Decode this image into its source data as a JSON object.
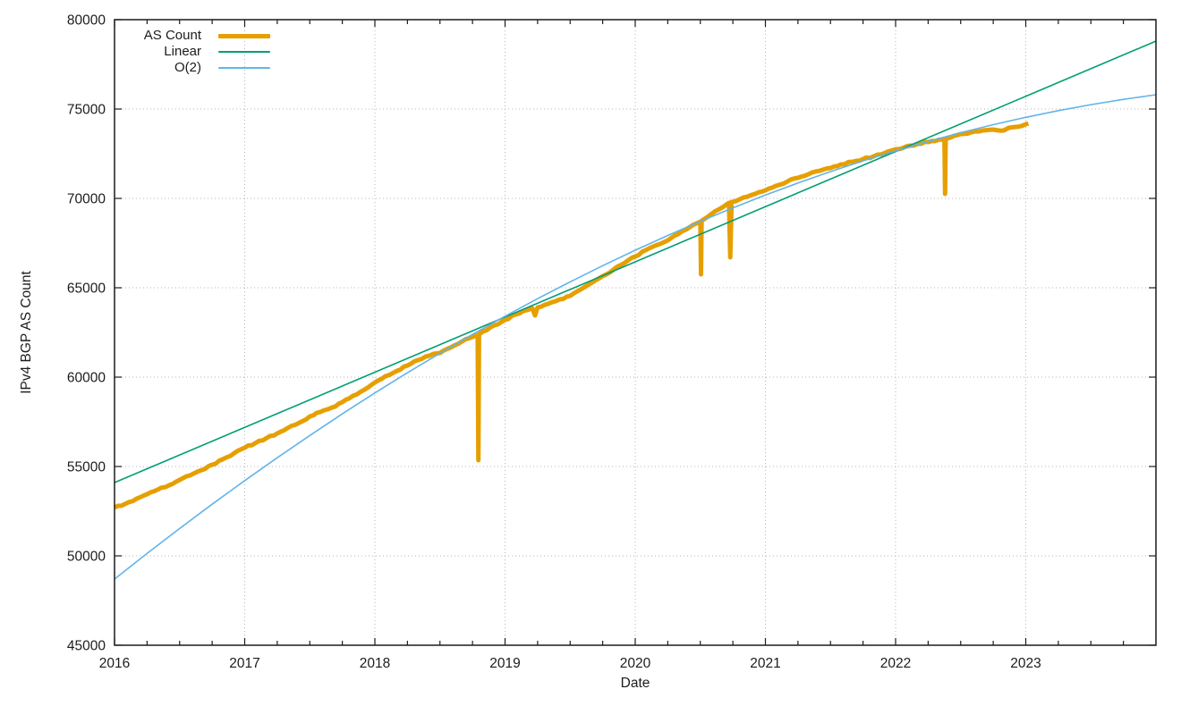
{
  "chart_data": {
    "type": "line",
    "title": "",
    "xlabel": "Date",
    "ylabel": "IPv4 BGP AS Count",
    "xlim": [
      2016,
      2024
    ],
    "ylim": [
      45000,
      80000
    ],
    "x_major_ticks": [
      2016,
      2017,
      2018,
      2019,
      2020,
      2021,
      2022,
      2023
    ],
    "x_minor_step": 0.25,
    "y_major_ticks": [
      45000,
      50000,
      55000,
      60000,
      65000,
      70000,
      75000,
      80000
    ],
    "grid": "dotted-on-majors",
    "legend_position": "top-left-inside",
    "legend_entries": [
      "AS Count",
      "Linear",
      "O(2)"
    ],
    "series": [
      {
        "name": "AS Count",
        "color": "#e69f00",
        "stroke_width": 5,
        "noisy": true,
        "points": [
          [
            2016.0,
            52700
          ],
          [
            2016.08,
            52900
          ],
          [
            2016.17,
            53200
          ],
          [
            2016.25,
            53450
          ],
          [
            2016.33,
            53700
          ],
          [
            2016.42,
            53950
          ],
          [
            2016.5,
            54250
          ],
          [
            2016.58,
            54500
          ],
          [
            2016.67,
            54800
          ],
          [
            2016.75,
            55100
          ],
          [
            2016.83,
            55400
          ],
          [
            2016.92,
            55750
          ],
          [
            2017.0,
            56050
          ],
          [
            2017.08,
            56300
          ],
          [
            2017.17,
            56600
          ],
          [
            2017.25,
            56850
          ],
          [
            2017.33,
            57150
          ],
          [
            2017.42,
            57450
          ],
          [
            2017.5,
            57800
          ],
          [
            2017.58,
            58050
          ],
          [
            2017.67,
            58300
          ],
          [
            2017.75,
            58600
          ],
          [
            2017.83,
            58950
          ],
          [
            2017.92,
            59300
          ],
          [
            2018.0,
            59700
          ],
          [
            2018.08,
            60050
          ],
          [
            2018.17,
            60350
          ],
          [
            2018.25,
            60650
          ],
          [
            2018.33,
            60950
          ],
          [
            2018.42,
            61200
          ],
          [
            2018.5,
            61350
          ],
          [
            2018.58,
            61650
          ],
          [
            2018.67,
            62000
          ],
          [
            2018.75,
            62250
          ],
          [
            2018.79,
            62350
          ],
          [
            2018.795,
            55350
          ],
          [
            2018.8,
            62400
          ],
          [
            2018.83,
            62550
          ],
          [
            2018.92,
            62900
          ],
          [
            2019.0,
            63200
          ],
          [
            2019.08,
            63500
          ],
          [
            2019.17,
            63750
          ],
          [
            2019.21,
            63850
          ],
          [
            2019.23,
            63450
          ],
          [
            2019.25,
            63900
          ],
          [
            2019.33,
            64100
          ],
          [
            2019.42,
            64350
          ],
          [
            2019.5,
            64550
          ],
          [
            2019.58,
            64900
          ],
          [
            2019.67,
            65300
          ],
          [
            2019.75,
            65650
          ],
          [
            2019.83,
            66000
          ],
          [
            2019.92,
            66400
          ],
          [
            2020.0,
            66750
          ],
          [
            2020.08,
            67100
          ],
          [
            2020.17,
            67400
          ],
          [
            2020.25,
            67650
          ],
          [
            2020.33,
            68000
          ],
          [
            2020.42,
            68400
          ],
          [
            2020.5,
            68700
          ],
          [
            2020.505,
            65750
          ],
          [
            2020.51,
            68750
          ],
          [
            2020.58,
            69100
          ],
          [
            2020.67,
            69500
          ],
          [
            2020.72,
            69750
          ],
          [
            2020.73,
            66700
          ],
          [
            2020.74,
            69800
          ],
          [
            2020.83,
            70050
          ],
          [
            2020.92,
            70250
          ],
          [
            2021.0,
            70450
          ],
          [
            2021.08,
            70700
          ],
          [
            2021.17,
            70950
          ],
          [
            2021.25,
            71150
          ],
          [
            2021.33,
            71350
          ],
          [
            2021.42,
            71550
          ],
          [
            2021.5,
            71700
          ],
          [
            2021.58,
            71900
          ],
          [
            2021.67,
            72050
          ],
          [
            2021.75,
            72200
          ],
          [
            2021.83,
            72350
          ],
          [
            2021.92,
            72550
          ],
          [
            2022.0,
            72750
          ],
          [
            2022.08,
            72900
          ],
          [
            2022.17,
            73050
          ],
          [
            2022.25,
            73150
          ],
          [
            2022.33,
            73280
          ],
          [
            2022.375,
            73310
          ],
          [
            2022.38,
            70250
          ],
          [
            2022.385,
            73320
          ],
          [
            2022.42,
            73400
          ],
          [
            2022.5,
            73600
          ],
          [
            2022.58,
            73700
          ],
          [
            2022.67,
            73800
          ],
          [
            2022.75,
            73850
          ],
          [
            2022.83,
            73800
          ],
          [
            2022.87,
            73950
          ],
          [
            2022.92,
            74000
          ],
          [
            2023.0,
            74150
          ],
          [
            2023.02,
            74200
          ]
        ]
      },
      {
        "name": "Linear",
        "color": "#009e73",
        "stroke_width": 1.6,
        "noisy": false,
        "points": [
          [
            2016,
            54100
          ],
          [
            2024,
            78800
          ]
        ]
      },
      {
        "name": "O(2)",
        "color": "#62b4e9",
        "stroke_width": 1.6,
        "noisy": false,
        "points": [
          [
            2016.0,
            48700
          ],
          [
            2016.25,
            50134
          ],
          [
            2016.5,
            51530
          ],
          [
            2016.75,
            52889
          ],
          [
            2017.0,
            54209
          ],
          [
            2017.25,
            55492
          ],
          [
            2017.5,
            56737
          ],
          [
            2017.75,
            57944
          ],
          [
            2018.0,
            59113
          ],
          [
            2018.25,
            60244
          ],
          [
            2018.5,
            61337
          ],
          [
            2018.75,
            62392
          ],
          [
            2019.0,
            63409
          ],
          [
            2019.25,
            64389
          ],
          [
            2019.5,
            65330
          ],
          [
            2019.75,
            66234
          ],
          [
            2020.0,
            67100
          ],
          [
            2020.25,
            67927
          ],
          [
            2020.5,
            68718
          ],
          [
            2020.75,
            69470
          ],
          [
            2021.0,
            70184
          ],
          [
            2021.25,
            70861
          ],
          [
            2021.5,
            71499
          ],
          [
            2021.75,
            72100
          ],
          [
            2022.0,
            72662
          ],
          [
            2022.25,
            73187
          ],
          [
            2022.5,
            73674
          ],
          [
            2022.75,
            74123
          ],
          [
            2023.0,
            74534
          ],
          [
            2023.25,
            74908
          ],
          [
            2023.5,
            75243
          ],
          [
            2023.75,
            75540
          ],
          [
            2024.0,
            75800
          ]
        ]
      }
    ],
    "colors": {
      "axis": "#1c1c1c",
      "grid": "#b5b5b5",
      "text": "#1c1c1c",
      "background": "#ffffff"
    }
  }
}
